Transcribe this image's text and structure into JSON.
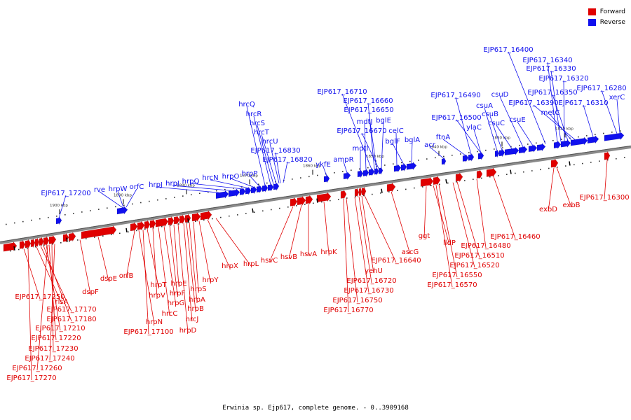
{
  "caption": "Erwinia sp. Ejp617, complete genome. - 0..3909168",
  "legend": {
    "forward_label": "Forward",
    "reverse_label": "Reverse",
    "forward_color": "#e00000",
    "reverse_color": "#1010ee"
  },
  "kbp_ticks": [
    "1900 kbp",
    "1890 kbp",
    "1880 kbp",
    "1870 kbp",
    "1860 kbp",
    "1850 kbp",
    "1840 kbp",
    "1830 kbp",
    "1820 kbp"
  ],
  "reverse_labels": [
    "EJP617_17200",
    "rve",
    "hrpW",
    "orfC",
    "hrpJ",
    "hrpI",
    "hrpQ",
    "hrcN",
    "hrpO",
    "hrpP",
    "hrcQ",
    "hrcR",
    "hrcS",
    "hrcT",
    "hrcU",
    "EJP617_16830",
    "EJP617_16820",
    "ykfE",
    "ampR",
    "mdtI",
    "mdtJ",
    "EJP617_16710",
    "EJP617_16660",
    "EJP617_16650",
    "EJP617_16670",
    "bglE",
    "celC",
    "bglF",
    "bglA",
    "acr",
    "ftnA",
    "EJP617_16490",
    "EJP617_16500",
    "ylaC",
    "csuA",
    "csuB",
    "csuC",
    "csuD",
    "csuE",
    "EJP617_16400",
    "EJP617_16340",
    "EJP617_16330",
    "EJP617_16320",
    "EJP617_16350",
    "EJP617_16390",
    "metC",
    "EJP617_16310",
    "EJP617_16280",
    "xerC"
  ],
  "forward_labels": [
    "EJP617_17250",
    "rlsA",
    "EJP617_17170",
    "EJP617_17180",
    "EJP617_17210",
    "EJP617_17220",
    "EJP617_17230",
    "EJP617_17240",
    "EJP617_17260",
    "EJP617_17270",
    "dspF",
    "dspE",
    "orfB",
    "hrpN",
    "EJP617_17100",
    "hrpT",
    "hrpV",
    "hrcC",
    "hrpG",
    "hrpF",
    "hrpE",
    "hrpD",
    "hrcJ",
    "hrpB",
    "hrpA",
    "hrpS",
    "hrpY",
    "hrpX",
    "hrpL",
    "hsvC",
    "hsvB",
    "hsvA",
    "hrpK",
    "EJP617_16770",
    "EJP617_16750",
    "EJP617_16730",
    "EJP617_16720",
    "yehU",
    "EJP617_16640",
    "ascG",
    "ggt",
    "lldP",
    "EJP617_16570",
    "EJP617_16550",
    "EJP617_16520",
    "EJP617_16510",
    "EJP617_16480",
    "EJP617_16460",
    "exbD",
    "exbB",
    "EJP617_16300"
  ]
}
